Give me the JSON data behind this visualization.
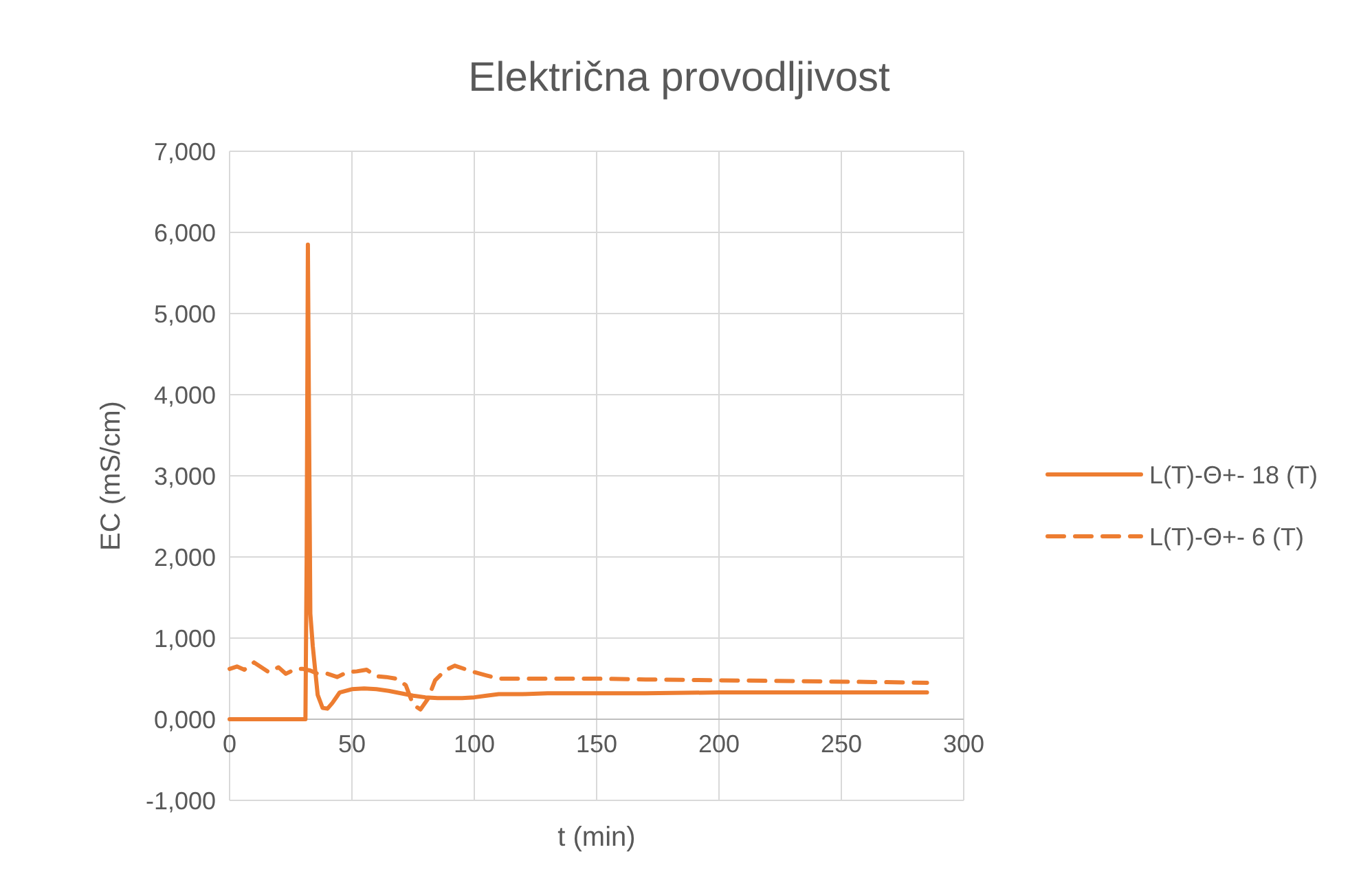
{
  "chart_data": {
    "type": "line",
    "title": "Električna provodljivost",
    "xlabel": "t (min)",
    "ylabel": "EC (mS/cm)",
    "xlim": [
      0,
      300
    ],
    "xticks": [
      0,
      50,
      100,
      150,
      200,
      250,
      300
    ],
    "ylim": [
      -1000,
      7000
    ],
    "yticks": [
      {
        "value": -1000,
        "label": "-1,000"
      },
      {
        "value": 0,
        "label": "0,000"
      },
      {
        "value": 1000,
        "label": "1,000"
      },
      {
        "value": 2000,
        "label": "2,000"
      },
      {
        "value": 3000,
        "label": "3,000"
      },
      {
        "value": 4000,
        "label": "4,000"
      },
      {
        "value": 5000,
        "label": "5,000"
      },
      {
        "value": 6000,
        "label": "6,000"
      },
      {
        "value": 7000,
        "label": "7,000"
      }
    ],
    "grid": true,
    "legend": "right",
    "marker": "none",
    "series": [
      {
        "name": "L(T)-Θ+- 18 (T)",
        "color": "#ed7d31",
        "line_style": "solid",
        "x": [
          0,
          10,
          20,
          30,
          31,
          31.5,
          32,
          32.5,
          33,
          34,
          35,
          36,
          38,
          40,
          42,
          45,
          50,
          55,
          60,
          65,
          70,
          75,
          80,
          85,
          90,
          95,
          100,
          105,
          110,
          120,
          130,
          150,
          170,
          200,
          230,
          260,
          285
        ],
        "values": [
          0,
          0,
          0,
          0,
          0,
          2000,
          5850,
          3500,
          1300,
          900,
          600,
          300,
          140,
          130,
          200,
          330,
          370,
          380,
          370,
          350,
          320,
          290,
          270,
          260,
          260,
          260,
          270,
          290,
          310,
          310,
          320,
          320,
          320,
          330,
          330,
          330,
          330
        ]
      },
      {
        "name": "L(T)-Θ+- 6 (T)",
        "color": "#ed7d31",
        "line_style": "dashed",
        "x": [
          0,
          3,
          6,
          10,
          13,
          16,
          20,
          23,
          27,
          30,
          33,
          36,
          40,
          44,
          48,
          52,
          56,
          60,
          64,
          68,
          72,
          75,
          78,
          81,
          84,
          88,
          92,
          96,
          100,
          105,
          110,
          130,
          150,
          170,
          200,
          230,
          260,
          285
        ],
        "values": [
          620,
          650,
          610,
          700,
          640,
          580,
          640,
          560,
          620,
          620,
          600,
          560,
          560,
          520,
          580,
          590,
          610,
          530,
          520,
          500,
          420,
          180,
          120,
          250,
          480,
          600,
          660,
          620,
          580,
          540,
          500,
          500,
          500,
          490,
          480,
          470,
          460,
          450
        ]
      }
    ]
  }
}
